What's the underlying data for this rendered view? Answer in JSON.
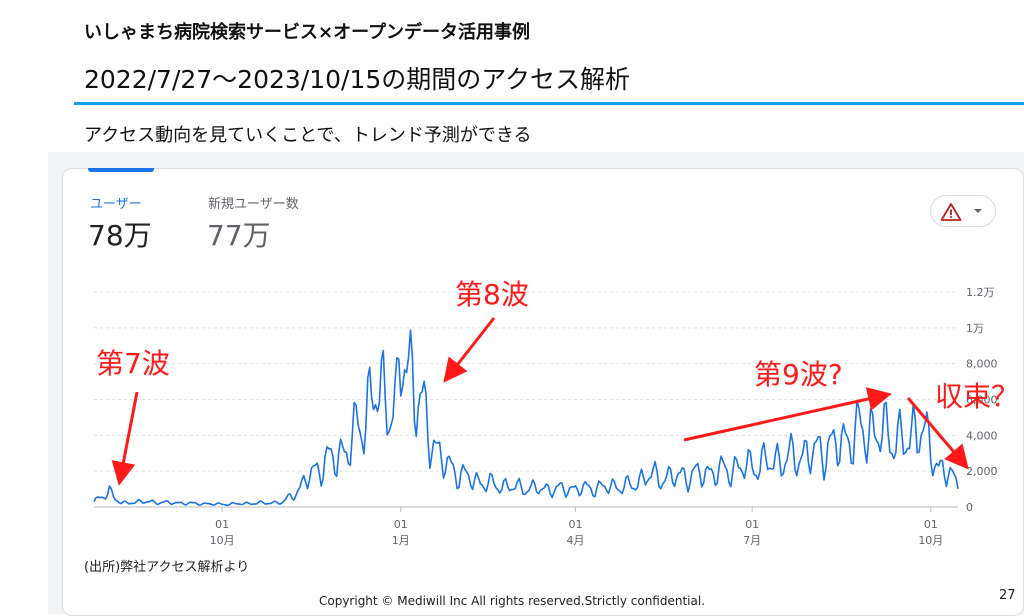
{
  "slide": {
    "title": "いしゃまち病院検索サービス×オープンデータ活用事例",
    "subtitle": "2022/7/27～2023/10/15の期間のアクセス解析",
    "lead": "アクセス動向を見ていくことで、トレンド予測ができる",
    "source": "(出所)弊社アクセス解析より",
    "copyright": "Copyright © Mediwill Inc All rights reserved.Strictly confidential.",
    "page_number": "27"
  },
  "metrics": [
    {
      "label": "ユーザー",
      "value": "78万",
      "selected": true
    },
    {
      "label": "新規ユーザー数",
      "value": "77万",
      "selected": false
    }
  ],
  "alert_button": {
    "icon": "warning-icon",
    "dropdown_icon": "chevron-down-icon"
  },
  "colors": {
    "series": "#1a73e8",
    "annotation": "#ff1a1a",
    "accent_rule": "#18a0e6"
  },
  "chart_data": {
    "type": "line",
    "x_start": "2022/7/27",
    "x_end": "2023/10/15",
    "ylim": [
      0,
      12000
    ],
    "y_ticks": [
      {
        "value": 0,
        "label": "0"
      },
      {
        "value": 2000,
        "label": "2,000"
      },
      {
        "value": 4000,
        "label": "4,000"
      },
      {
        "value": 6000,
        "label": "6,000"
      },
      {
        "value": 8000,
        "label": "8,000"
      },
      {
        "value": 10000,
        "label": "1万"
      },
      {
        "value": 12000,
        "label": "1.2万"
      }
    ],
    "x_ticks": [
      {
        "date": "2022/10/1",
        "day": "01",
        "month": "10月"
      },
      {
        "date": "2023/1/1",
        "day": "01",
        "month": "1月"
      },
      {
        "date": "2023/4/1",
        "day": "01",
        "month": "4月"
      },
      {
        "date": "2023/7/1",
        "day": "01",
        "month": "7月"
      },
      {
        "date": "2023/10/1",
        "day": "01",
        "month": "10月"
      }
    ],
    "grid": true,
    "y_axis_position": "right",
    "series": [
      {
        "values_description": "daily users, approximate keypoints",
        "points": [
          [
            "2022/7/27",
            300
          ],
          [
            "2022/8/1",
            600
          ],
          [
            "2022/8/4",
            900
          ],
          [
            "2022/8/7",
            500
          ],
          [
            "2022/8/10",
            200
          ],
          [
            "2022/8/20",
            300
          ],
          [
            "2022/9/1",
            250
          ],
          [
            "2022/9/15",
            200
          ],
          [
            "2022/10/1",
            150
          ],
          [
            "2022/10/15",
            200
          ],
          [
            "2022/11/1",
            250
          ],
          [
            "2022/11/10",
            1000
          ],
          [
            "2022/11/15",
            1800
          ],
          [
            "2022/11/25",
            2600
          ],
          [
            "2022/12/5",
            3200
          ],
          [
            "2022/12/10",
            4500
          ],
          [
            "2022/12/15",
            5500
          ],
          [
            "2022/12/20",
            6500
          ],
          [
            "2022/12/25",
            6000
          ],
          [
            "2022/12/30",
            5500
          ],
          [
            "2023/1/2",
            9000
          ],
          [
            "2023/1/6",
            7500
          ],
          [
            "2023/1/10",
            6000
          ],
          [
            "2023/1/15",
            4500
          ],
          [
            "2023/1/20",
            3000
          ],
          [
            "2023/1/25",
            2300
          ],
          [
            "2023/2/1",
            1800
          ],
          [
            "2023/2/10",
            1400
          ],
          [
            "2023/2/20",
            1200
          ],
          [
            "2023/3/1",
            1100
          ],
          [
            "2023/3/15",
            1000
          ],
          [
            "2023/4/1",
            1000
          ],
          [
            "2023/4/15",
            1100
          ],
          [
            "2023/5/1",
            1200
          ],
          [
            "2023/5/8",
            1800
          ],
          [
            "2023/5/15",
            1600
          ],
          [
            "2023/6/1",
            1800
          ],
          [
            "2023/6/15",
            2000
          ],
          [
            "2023/7/1",
            2300
          ],
          [
            "2023/7/15",
            2600
          ],
          [
            "2023/8/1",
            3000
          ],
          [
            "2023/8/15",
            3500
          ],
          [
            "2023/8/25",
            4200
          ],
          [
            "2023/9/1",
            4200
          ],
          [
            "2023/9/10",
            4000
          ],
          [
            "2023/9/20",
            3500
          ],
          [
            "2023/9/25",
            5000
          ],
          [
            "2023/10/1",
            3000
          ],
          [
            "2023/10/5",
            2200
          ],
          [
            "2023/10/10",
            2000
          ],
          [
            "2023/10/15",
            1100
          ]
        ]
      }
    ],
    "annotations": [
      {
        "label": "第7波"
      },
      {
        "label": "第8波"
      },
      {
        "label": "第9波?"
      },
      {
        "label": "収束？"
      }
    ]
  }
}
